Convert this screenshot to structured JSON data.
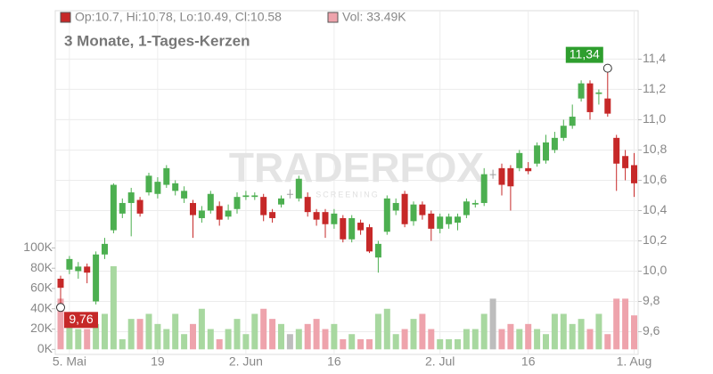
{
  "chart_data": {
    "type": "candlestick",
    "subtitle": "3 Monate, 1-Tages-Kerzen",
    "legend_ohlc": "Op:10.7, Hi:10.78, Lo:10.49, Cl:10.58",
    "legend_volume": "Vol: 33.49K",
    "watermark": "TRADERFOX",
    "watermark_sub": "SCREENING",
    "categories": [
      null,
      "5. Mai",
      null,
      null,
      null,
      null,
      null,
      null,
      null,
      null,
      null,
      "19",
      null,
      null,
      null,
      null,
      null,
      null,
      null,
      null,
      null,
      "2. Jun",
      null,
      null,
      null,
      null,
      null,
      null,
      null,
      null,
      null,
      "16",
      null,
      null,
      null,
      null,
      null,
      null,
      null,
      null,
      null,
      null,
      null,
      "2. Jul",
      null,
      null,
      null,
      null,
      null,
      null,
      null,
      null,
      null,
      "16",
      null,
      null,
      null,
      null,
      null,
      null,
      null,
      null,
      null,
      null,
      null,
      "1. Aug"
    ],
    "open": [
      9.95,
      10.01,
      10.0,
      10.03,
      9.8,
      10.11,
      10.27,
      10.38,
      10.45,
      10.47,
      10.52,
      10.51,
      10.57,
      10.53,
      10.48,
      10.45,
      10.35,
      10.4,
      10.43,
      10.36,
      10.41,
      10.49,
      10.49,
      10.49,
      10.39,
      10.44,
      10.51,
      10.48,
      10.49,
      10.39,
      10.39,
      10.31,
      10.35,
      10.21,
      10.32,
      10.29,
      10.09,
      10.26,
      10.4,
      10.51,
      10.33,
      10.44,
      10.38,
      10.28,
      10.31,
      10.32,
      10.37,
      10.44,
      10.45,
      10.64,
      10.68,
      10.68,
      10.68,
      10.68,
      10.71,
      10.73,
      10.8,
      10.88,
      10.96,
      11.14,
      11.24,
      11.17,
      11.14,
      10.88,
      10.76,
      10.7
    ],
    "high": [
      9.97,
      10.1,
      10.06,
      10.05,
      10.13,
      10.22,
      10.58,
      10.48,
      10.55,
      10.49,
      10.65,
      10.62,
      10.7,
      10.6,
      10.56,
      10.47,
      10.43,
      10.53,
      10.46,
      10.44,
      10.52,
      10.53,
      10.52,
      10.51,
      10.41,
      10.5,
      10.54,
      10.63,
      10.52,
      10.41,
      10.41,
      10.41,
      10.37,
      10.37,
      10.34,
      10.31,
      10.2,
      10.5,
      10.48,
      10.53,
      10.46,
      10.46,
      10.4,
      10.38,
      10.38,
      10.38,
      10.48,
      10.47,
      10.68,
      10.67,
      10.71,
      10.7,
      10.8,
      10.72,
      10.85,
      10.9,
      10.92,
      11.0,
      11.1,
      11.26,
      11.26,
      11.2,
      11.34,
      10.9,
      10.8,
      10.78
    ],
    "low": [
      9.76,
      9.98,
      9.95,
      9.92,
      9.78,
      10.08,
      10.25,
      10.35,
      10.23,
      10.36,
      10.5,
      10.48,
      10.55,
      10.5,
      10.45,
      10.22,
      10.32,
      10.38,
      10.3,
      10.34,
      10.38,
      10.47,
      10.47,
      10.33,
      10.32,
      10.42,
      10.48,
      10.46,
      10.36,
      10.3,
      10.22,
      10.28,
      10.19,
      10.19,
      10.24,
      10.12,
      9.99,
      10.24,
      10.37,
      10.29,
      10.3,
      10.34,
      10.2,
      10.25,
      10.28,
      10.27,
      10.35,
      10.42,
      10.43,
      10.61,
      10.5,
      10.4,
      10.66,
      10.64,
      10.69,
      10.71,
      10.78,
      10.86,
      10.94,
      11.12,
      11.0,
      11.1,
      11.02,
      10.53,
      10.6,
      10.49
    ],
    "close": [
      9.89,
      10.08,
      10.03,
      9.99,
      10.11,
      10.18,
      10.57,
      10.45,
      10.52,
      10.38,
      10.63,
      10.59,
      10.68,
      10.58,
      10.53,
      10.37,
      10.4,
      10.51,
      10.34,
      10.4,
      10.49,
      10.5,
      10.5,
      10.37,
      10.35,
      10.48,
      10.51,
      10.61,
      10.39,
      10.34,
      10.31,
      10.38,
      10.21,
      10.35,
      10.27,
      10.13,
      10.18,
      10.48,
      10.45,
      10.31,
      10.44,
      10.37,
      10.28,
      10.36,
      10.36,
      10.36,
      10.46,
      10.45,
      10.64,
      10.64,
      10.57,
      10.56,
      10.78,
      10.66,
      10.83,
      10.85,
      10.88,
      10.96,
      11.02,
      11.24,
      11.05,
      11.18,
      11.04,
      10.71,
      10.68,
      10.58
    ],
    "volume": [
      50,
      25,
      20,
      20,
      25,
      35,
      82,
      10,
      30,
      30,
      35,
      25,
      20,
      35,
      15,
      25,
      40,
      20,
      10,
      20,
      30,
      15,
      35,
      40,
      30,
      25,
      15,
      20,
      25,
      30,
      20,
      25,
      10,
      15,
      10,
      10,
      35,
      40,
      15,
      20,
      30,
      35,
      20,
      10,
      10,
      10,
      20,
      20,
      35,
      50,
      20,
      25,
      20,
      25,
      20,
      15,
      35,
      35,
      25,
      30,
      20,
      35,
      15,
      50,
      50,
      33.49
    ],
    "max_label": "11,34",
    "min_label": "9,76",
    "ylim": [
      9.45,
      11.72
    ],
    "yticks": [
      {
        "value": 9.6,
        "label": "9,6"
      },
      {
        "value": 9.8,
        "label": "9,8"
      },
      {
        "value": 10.0,
        "label": "10,0"
      },
      {
        "value": 10.2,
        "label": "10,2"
      },
      {
        "value": 10.4,
        "label": "10,4"
      },
      {
        "value": 10.6,
        "label": "10,6"
      },
      {
        "value": 10.8,
        "label": "10,8"
      },
      {
        "value": 11.0,
        "label": "11,0"
      },
      {
        "value": 11.2,
        "label": "11,2"
      },
      {
        "value": 11.4,
        "label": "11,4"
      }
    ],
    "y2lim": [
      -5,
      334
    ],
    "y2ticks": [
      {
        "value": 0,
        "label": "0K"
      },
      {
        "value": 20,
        "label": "20K"
      },
      {
        "value": 40,
        "label": "40K"
      },
      {
        "value": 60,
        "label": "60K"
      },
      {
        "value": 80,
        "label": "80K"
      },
      {
        "value": 100,
        "label": "100K"
      }
    ],
    "up_color": "#4caf50",
    "down_color": "#c62828",
    "flat_color": "#9e9e9e",
    "vol_up_color": "#a8d8a0",
    "vol_down_color": "#eea3ac",
    "vol_flat_color": "#bdbdbd",
    "grid": true
  }
}
